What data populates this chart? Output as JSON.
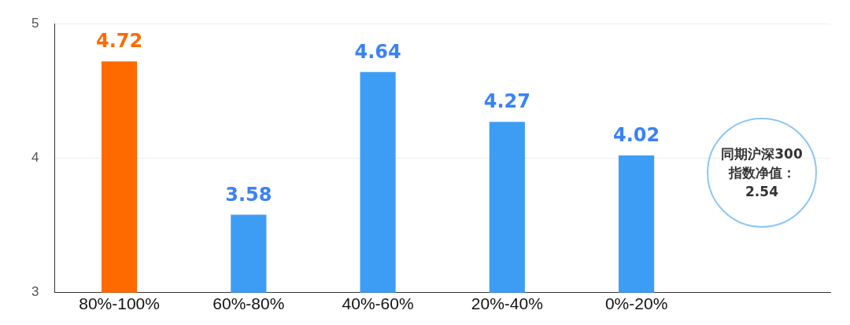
{
  "chart_data": {
    "type": "bar",
    "categories": [
      "80%-100%",
      "60%-80%",
      "40%-60%",
      "20%-40%",
      "0%-20%"
    ],
    "values": [
      4.72,
      3.58,
      4.64,
      4.27,
      4.02
    ],
    "colors": [
      "#ff6a00",
      "#3d9df5",
      "#3d9df5",
      "#3d9df5",
      "#3d9df5"
    ],
    "ylim": [
      3,
      5
    ],
    "yticks": [
      3,
      4,
      5
    ],
    "grid": "y",
    "data_labels": true,
    "annotations": [
      "同期沪深300指数净值：2.54"
    ]
  }
}
